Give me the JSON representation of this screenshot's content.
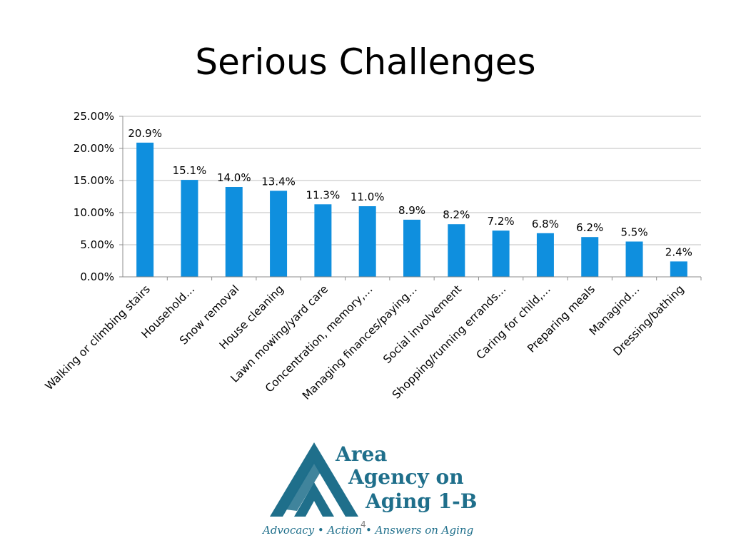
{
  "slide": {
    "title": "Serious Challenges",
    "page_number": "4"
  },
  "logo": {
    "line1": "Area",
    "line2": "Agency on",
    "line3": "Aging 1-B",
    "tagline": "Advocacy • Action • Answers on Aging",
    "color": "#1f6f8b"
  },
  "chart_data": {
    "type": "bar",
    "title": "",
    "xlabel": "",
    "ylabel": "",
    "categories": [
      "Walking or climbing stairs",
      "Household…",
      "Snow removal",
      "House cleaning",
      "Lawn mowing/yard care",
      "Concentration, memory,…",
      "Managing finances/paying…",
      "Social involvement",
      "Shopping/running errands…",
      "Caring for child,…",
      "Preparing meals",
      "Managind…",
      "Dressing/bathing"
    ],
    "values": [
      20.9,
      15.1,
      14.0,
      13.4,
      11.3,
      11.0,
      8.9,
      8.2,
      7.2,
      6.8,
      6.2,
      5.5,
      2.4
    ],
    "data_labels": [
      "20.9%",
      "15.1%",
      "14.0%",
      "13.4%",
      "11.3%",
      "11.0%",
      "8.9%",
      "8.2%",
      "7.2%",
      "6.8%",
      "6.2%",
      "5.5%",
      "2.4%"
    ],
    "yticks": [
      0,
      5,
      10,
      15,
      20,
      25
    ],
    "ytick_labels": [
      "0.00%",
      "5.00%",
      "10.00%",
      "15.00%",
      "20.00%",
      "25.00%"
    ],
    "ylim": [
      0,
      25
    ],
    "grid": true,
    "legend": "none",
    "bar_color": "#0f8fde"
  }
}
